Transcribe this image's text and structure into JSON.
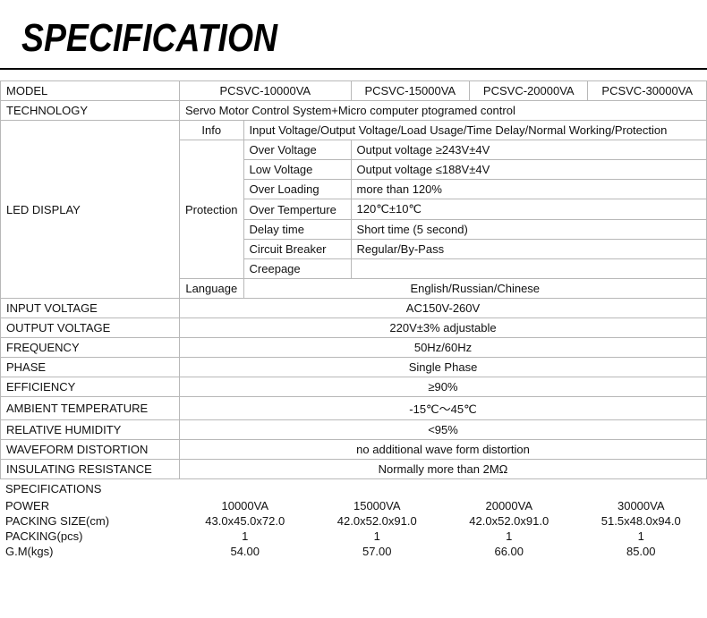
{
  "title": "SPECIFICATION",
  "labels": {
    "model": "MODEL",
    "technology": "TECHNOLOGY",
    "led_display": "LED DISPLAY",
    "input_voltage": "INPUT VOLTAGE",
    "output_voltage": "OUTPUT VOLTAGE",
    "frequency": "FREQUENCY",
    "phase": "PHASE",
    "efficiency": "EFFICIENCY",
    "ambient_temp": "AMBIENT TEMPERATURE",
    "rel_humidity": "RELATIVE HUMIDITY",
    "waveform": "WAVEFORM DISTORTION",
    "insulating": "INSULATING RESISTANCE",
    "specifications": "SPECIFICATIONS",
    "power": "POWER",
    "packing_size": "PACKING SIZE(cm)",
    "packing_pcs": "PACKING(pcs)",
    "gm": "G.M(kgs)"
  },
  "models": [
    "PCSVC-10000VA",
    "PCSVC-15000VA",
    "PCSVC-20000VA",
    "PCSVC-30000VA"
  ],
  "technology_value": "Servo Motor Control System+Micro computer ptogramed control",
  "led": {
    "info_label": "Info",
    "info_value": "Input Voltage/Output Voltage/Load Usage/Time Delay/Normal Working/Protection",
    "protection_label": "Protection",
    "rows": {
      "over_voltage": {
        "k": "Over Voltage",
        "v": "Output voltage ≥243V±4V"
      },
      "low_voltage": {
        "k": "Low Voltage",
        "v": "Output voltage ≤188V±4V"
      },
      "over_loading": {
        "k": "Over Loading",
        "v": "more than 120%"
      },
      "over_temp": {
        "k": "Over Temperture",
        "v": "120℃±10℃"
      },
      "delay": {
        "k": "Delay time",
        "v": "Short time (5 second)"
      },
      "breaker": {
        "k": "Circuit Breaker",
        "v": "Regular/By-Pass"
      },
      "creepage": {
        "k": "Creepage",
        "v": ""
      }
    },
    "language_label": "Language",
    "language_value": "English/Russian/Chinese"
  },
  "simple": {
    "input_voltage": "AC150V-260V",
    "output_voltage": "220V±3%   adjustable",
    "frequency": "50Hz/60Hz",
    "phase": "Single Phase",
    "efficiency": "≥90%",
    "ambient_temp": "-15℃～45℃",
    "rel_humidity": "<95%",
    "waveform": "no additional wave form distortion",
    "insulating": "Normally more than 2MΩ"
  },
  "specs": {
    "power": [
      "10000VA",
      "15000VA",
      "20000VA",
      "30000VA"
    ],
    "packing_size": [
      "43.0x45.0x72.0",
      "42.0x52.0x91.0",
      "42.0x52.0x91.0",
      "51.5x48.0x94.0"
    ],
    "packing_pcs": [
      "1",
      "1",
      "1",
      "1"
    ],
    "gm": [
      "54.00",
      "57.00",
      "66.00",
      "85.00"
    ]
  },
  "style": {
    "title_color": "#000000",
    "title_fontsize": 44,
    "border_color": "#b8b8b8",
    "body_fontsize": 13,
    "background": "#ffffff",
    "text_color": "#111111"
  }
}
